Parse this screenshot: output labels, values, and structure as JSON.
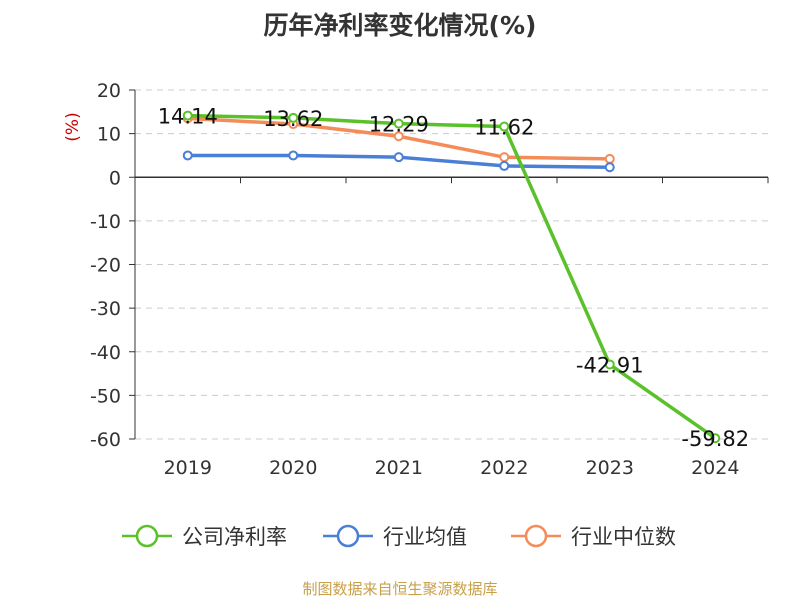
{
  "chart_data": {
    "type": "line",
    "title": "历年净利率变化情况(%)",
    "ylabel": "(%)",
    "xlabel": "",
    "x": [
      "2019",
      "2020",
      "2021",
      "2022",
      "2023",
      "2024"
    ],
    "y_ticks": [
      20,
      10,
      0,
      -10,
      -20,
      -30,
      -40,
      -50,
      -60
    ],
    "ylim": [
      -60,
      20
    ],
    "grid": true,
    "legend_position": "bottom",
    "series": [
      {
        "name": "公司净利率",
        "color": "#5ac12a",
        "values": [
          14.14,
          13.62,
          12.29,
          11.62,
          -42.91,
          -59.82
        ],
        "labels": [
          "14.14",
          "13.62",
          "12.29",
          "11.62",
          "-42.91",
          "-59.82"
        ]
      },
      {
        "name": "行业均值",
        "color": "#4a7fd6",
        "values": [
          5.0,
          5.0,
          4.6,
          2.6,
          2.3,
          null
        ],
        "labels": []
      },
      {
        "name": "行业中位数",
        "color": "#f48c5a",
        "values": [
          13.5,
          12.2,
          9.4,
          4.6,
          4.2,
          null
        ],
        "labels": []
      }
    ]
  },
  "source": "制图数据来自恒生聚源数据库"
}
